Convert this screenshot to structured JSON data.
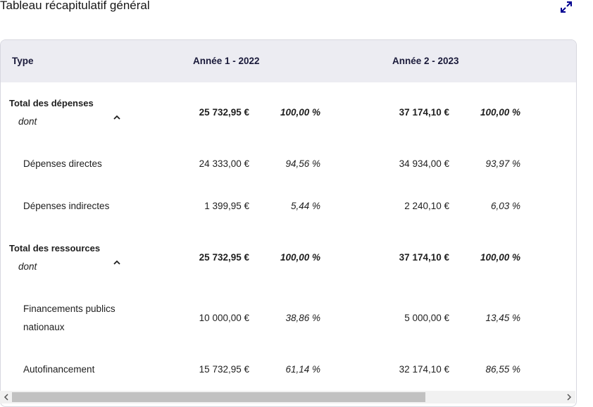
{
  "page": {
    "title": "Tableau récapitulatif général",
    "expand_icon": "expand-diagonal-icon",
    "accent_color": "#000091"
  },
  "table": {
    "headers": {
      "type": "Type",
      "year1": "Année 1 - 2022",
      "year2": "Année 2 - 2023"
    },
    "rows": [
      {
        "label": "Total des dépenses",
        "sub": "dont",
        "kind": "total",
        "year1_amount": "25 732,95 €",
        "year1_pct": "100,00 %",
        "year2_amount": "37 174,10 €",
        "year2_pct": "100,00 %"
      },
      {
        "label": "Dépenses directes",
        "kind": "detail",
        "year1_amount": "24 333,00 €",
        "year1_pct": "94,56 %",
        "year2_amount": "34 934,00 €",
        "year2_pct": "93,97 %"
      },
      {
        "label": "Dépenses indirectes",
        "kind": "detail",
        "year1_amount": "1 399,95 €",
        "year1_pct": "5,44 %",
        "year2_amount": "2 240,10 €",
        "year2_pct": "6,03 %"
      },
      {
        "label": "Total des ressources",
        "sub": "dont",
        "kind": "total",
        "year1_amount": "25 732,95 €",
        "year1_pct": "100,00 %",
        "year2_amount": "37 174,10 €",
        "year2_pct": "100,00 %"
      },
      {
        "label_line1": "Financements publics",
        "label_line2": "nationaux",
        "kind": "detail",
        "year1_amount": "10 000,00 €",
        "year1_pct": "38,86 %",
        "year2_amount": "5 000,00 €",
        "year2_pct": "13,45 %"
      },
      {
        "label": "Autofinancement",
        "kind": "detail",
        "year1_amount": "15 732,95 €",
        "year1_pct": "61,14 %",
        "year2_amount": "32 174,10 €",
        "year2_pct": "86,55 %"
      }
    ]
  },
  "scrollbar": {
    "left_arrow": "<",
    "right_arrow": ">"
  }
}
